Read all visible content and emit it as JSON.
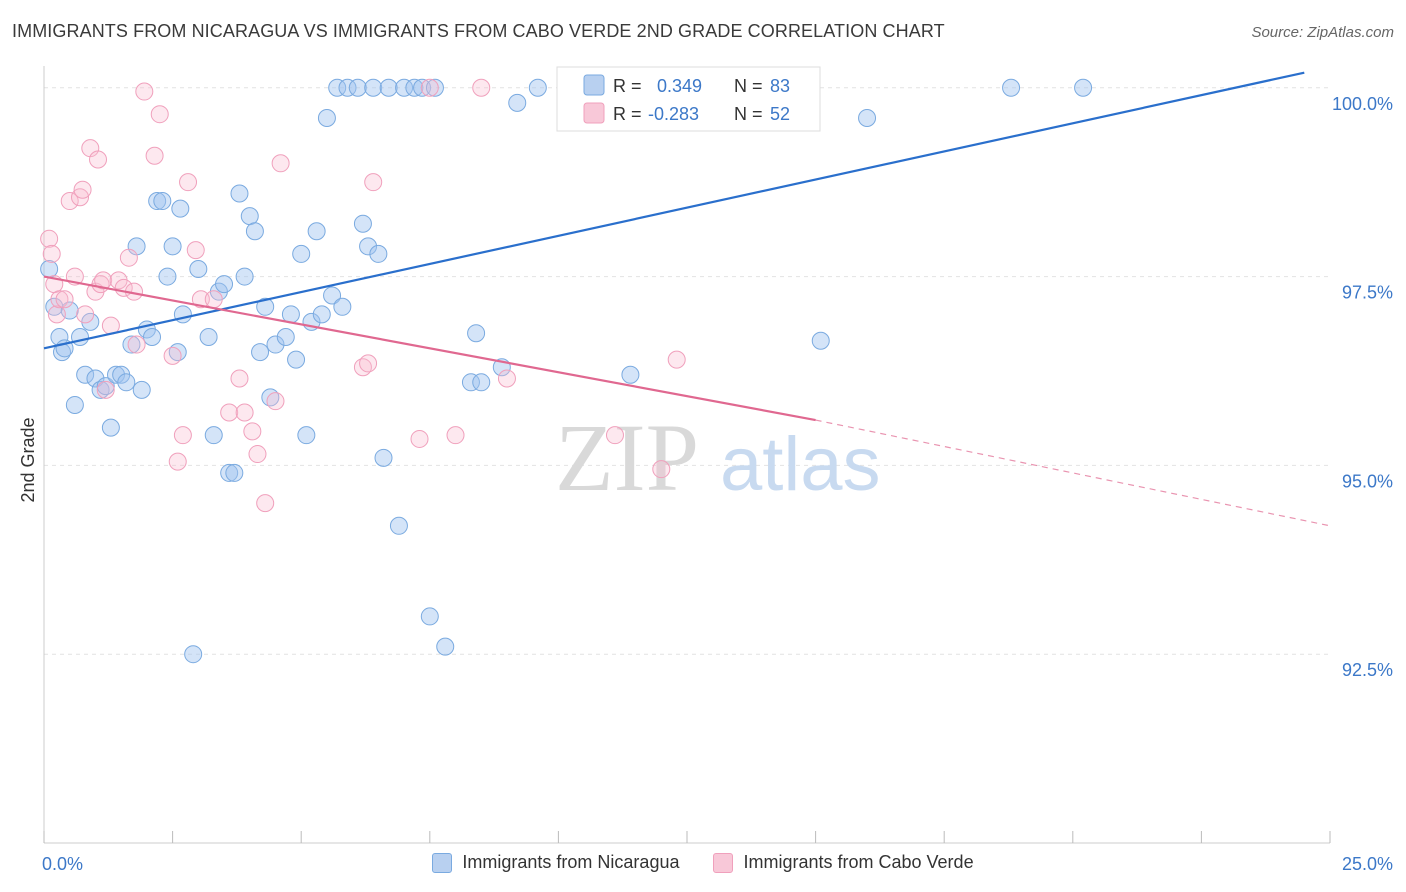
{
  "title": "IMMIGRANTS FROM NICARAGUA VS IMMIGRANTS FROM CABO VERDE 2ND GRADE CORRELATION CHART",
  "source": "Source: ZipAtlas.com",
  "watermark": {
    "zip": "ZIP",
    "atlas": "atlas"
  },
  "legend_box": [
    {
      "r_label": "R =",
      "r_value": "0.349",
      "n_label": "N =",
      "n_value": "83"
    },
    {
      "r_label": "R =",
      "r_value": "-0.283",
      "n_label": "N =",
      "n_value": "52"
    }
  ],
  "bottom_legend": [
    "Immigrants from Nicaragua",
    "Immigrants from Cabo Verde"
  ],
  "chart_data": {
    "type": "scatter",
    "title": "IMMIGRANTS FROM NICARAGUA VS IMMIGRANTS FROM CABO VERDE 2ND GRADE CORRELATION CHART",
    "xlabel": "",
    "ylabel": "2nd Grade",
    "xlim": [
      0,
      25
    ],
    "ylim": [
      90.0,
      100.5
    ],
    "x_tick_labels": [
      "0.0%",
      "25.0%"
    ],
    "y_ticks": [
      92.5,
      95.0,
      97.5,
      100.0
    ],
    "y_tick_labels": [
      "92.5%",
      "95.0%",
      "97.5%",
      "100.0%"
    ],
    "grid": true,
    "legend_position": "top-center",
    "colors": {
      "nicaragua": "#7aaae0",
      "nicaragua_line": "#2a6fcc",
      "caboverde": "#f0a0bc",
      "caboverde_line": "#e06890",
      "tick_text": "#3c78c8"
    },
    "series": [
      {
        "name": "Immigrants from Nicaragua",
        "r": 0.349,
        "n": 83,
        "trend": {
          "x0": 0.0,
          "y0": 96.55,
          "x1": 24.5,
          "y1": 100.2
        },
        "points": [
          [
            0.1,
            97.6
          ],
          [
            0.2,
            97.1
          ],
          [
            0.3,
            96.7
          ],
          [
            0.35,
            96.5
          ],
          [
            0.4,
            96.55
          ],
          [
            0.5,
            97.05
          ],
          [
            0.6,
            95.8
          ],
          [
            0.7,
            96.7
          ],
          [
            0.8,
            96.2
          ],
          [
            0.9,
            96.9
          ],
          [
            1.0,
            96.15
          ],
          [
            1.1,
            96.0
          ],
          [
            1.2,
            96.05
          ],
          [
            1.3,
            95.5
          ],
          [
            1.4,
            96.2
          ],
          [
            1.5,
            96.2
          ],
          [
            1.6,
            96.1
          ],
          [
            1.7,
            96.6
          ],
          [
            1.8,
            97.9
          ],
          [
            1.9,
            96.0
          ],
          [
            2.0,
            96.8
          ],
          [
            2.1,
            96.7
          ],
          [
            2.2,
            98.5
          ],
          [
            2.3,
            98.5
          ],
          [
            2.4,
            97.5
          ],
          [
            2.5,
            97.9
          ],
          [
            2.6,
            96.5
          ],
          [
            2.65,
            98.4
          ],
          [
            2.7,
            97.0
          ],
          [
            2.9,
            92.5
          ],
          [
            3.0,
            97.6
          ],
          [
            3.2,
            96.7
          ],
          [
            3.3,
            95.4
          ],
          [
            3.4,
            97.3
          ],
          [
            3.5,
            97.4
          ],
          [
            3.6,
            94.9
          ],
          [
            3.7,
            94.9
          ],
          [
            3.8,
            98.6
          ],
          [
            3.9,
            97.5
          ],
          [
            4.0,
            98.3
          ],
          [
            4.1,
            98.1
          ],
          [
            4.2,
            96.5
          ],
          [
            4.3,
            97.1
          ],
          [
            4.4,
            95.9
          ],
          [
            4.5,
            96.6
          ],
          [
            4.7,
            96.7
          ],
          [
            4.8,
            97.0
          ],
          [
            4.9,
            96.4
          ],
          [
            5.0,
            97.8
          ],
          [
            5.1,
            95.4
          ],
          [
            5.2,
            96.9
          ],
          [
            5.3,
            98.1
          ],
          [
            5.4,
            97.0
          ],
          [
            5.5,
            99.6
          ],
          [
            5.6,
            97.25
          ],
          [
            5.7,
            100.0
          ],
          [
            5.8,
            97.1
          ],
          [
            5.9,
            100.0
          ],
          [
            6.1,
            100.0
          ],
          [
            6.2,
            98.2
          ],
          [
            6.3,
            97.9
          ],
          [
            6.4,
            100.0
          ],
          [
            6.5,
            97.8
          ],
          [
            6.6,
            95.1
          ],
          [
            6.7,
            100.0
          ],
          [
            6.9,
            94.2
          ],
          [
            7.0,
            100.0
          ],
          [
            7.2,
            100.0
          ],
          [
            7.35,
            100.0
          ],
          [
            7.5,
            93.0
          ],
          [
            7.6,
            100.0
          ],
          [
            7.8,
            92.6
          ],
          [
            8.3,
            96.1
          ],
          [
            8.5,
            96.1
          ],
          [
            8.4,
            96.75
          ],
          [
            8.9,
            96.3
          ],
          [
            9.2,
            99.8
          ],
          [
            9.6,
            100.0
          ],
          [
            11.4,
            96.2
          ],
          [
            15.1,
            96.65
          ],
          [
            16.0,
            99.6
          ],
          [
            18.8,
            100.0
          ],
          [
            20.2,
            100.0
          ]
        ]
      },
      {
        "name": "Immigrants from Cabo Verde",
        "r": -0.283,
        "n": 52,
        "trend": {
          "x0": 0.0,
          "y0": 97.5,
          "x1": 15.0,
          "y1": 95.6
        },
        "trend_dashed": {
          "x0": 15.0,
          "y0": 95.6,
          "x1": 25.0,
          "y1": 94.2
        },
        "points": [
          [
            0.1,
            98.0
          ],
          [
            0.15,
            97.8
          ],
          [
            0.2,
            97.4
          ],
          [
            0.25,
            97.0
          ],
          [
            0.3,
            97.2
          ],
          [
            0.4,
            97.2
          ],
          [
            0.5,
            98.5
          ],
          [
            0.6,
            97.5
          ],
          [
            0.7,
            98.55
          ],
          [
            0.75,
            98.65
          ],
          [
            0.8,
            97.0
          ],
          [
            0.9,
            99.2
          ],
          [
            1.0,
            97.3
          ],
          [
            1.05,
            99.05
          ],
          [
            1.1,
            97.4
          ],
          [
            1.15,
            97.45
          ],
          [
            1.2,
            96.0
          ],
          [
            1.3,
            96.85
          ],
          [
            1.45,
            97.45
          ],
          [
            1.55,
            97.35
          ],
          [
            1.65,
            97.75
          ],
          [
            1.75,
            97.3
          ],
          [
            1.8,
            96.6
          ],
          [
            1.95,
            99.95
          ],
          [
            2.15,
            99.1
          ],
          [
            2.25,
            99.65
          ],
          [
            2.5,
            96.45
          ],
          [
            2.6,
            95.05
          ],
          [
            2.7,
            95.4
          ],
          [
            2.8,
            98.75
          ],
          [
            2.95,
            97.85
          ],
          [
            3.05,
            97.2
          ],
          [
            3.3,
            97.2
          ],
          [
            3.6,
            95.7
          ],
          [
            3.8,
            96.15
          ],
          [
            3.9,
            95.7
          ],
          [
            4.05,
            95.45
          ],
          [
            4.15,
            95.15
          ],
          [
            4.3,
            94.5
          ],
          [
            4.5,
            95.85
          ],
          [
            4.6,
            99.0
          ],
          [
            6.2,
            96.3
          ],
          [
            6.3,
            96.35
          ],
          [
            6.4,
            98.75
          ],
          [
            7.3,
            95.35
          ],
          [
            7.5,
            100.0
          ],
          [
            8.0,
            95.4
          ],
          [
            8.5,
            100.0
          ],
          [
            9.0,
            96.15
          ],
          [
            11.1,
            95.4
          ],
          [
            12.0,
            94.95
          ],
          [
            12.3,
            96.4
          ]
        ]
      }
    ]
  }
}
